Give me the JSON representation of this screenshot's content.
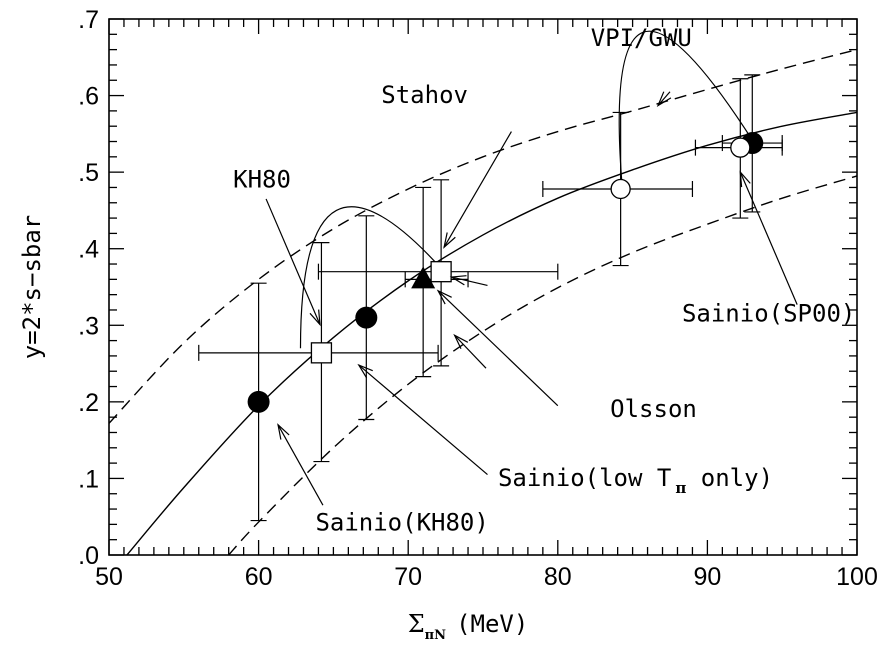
{
  "chart_data": {
    "type": "scatter",
    "title": "",
    "xlabel": {
      "symbol": "Σ",
      "sub": "πN",
      "rest": "(MeV)"
    },
    "ylabel": "y=2*s−sbar",
    "xlim": [
      50,
      100
    ],
    "ylim": [
      0,
      0.7
    ],
    "x_ticks": [
      "50",
      "60",
      "70",
      "80",
      "90",
      "100"
    ],
    "y_ticks": [
      ".0",
      ".1",
      ".2",
      ".3",
      ".4",
      ".5",
      ".6",
      ".7"
    ],
    "series": [
      {
        "marker": "filled-circle",
        "points": [
          {
            "x": 60,
            "y": 0.2,
            "yerr": [
              0.045,
              0.355
            ]
          },
          {
            "x": 67.2,
            "y": 0.31,
            "yerr": [
              0.177,
              0.443
            ]
          },
          {
            "x": 93,
            "y": 0.538,
            "yerr": [
              0.448,
              0.627
            ],
            "xerr": [
              91,
              95
            ]
          }
        ]
      },
      {
        "marker": "open-square",
        "points": [
          {
            "x": 64.2,
            "y": 0.264,
            "yerr": [
              0.122,
              0.408
            ],
            "xerr": [
              56,
              72
            ]
          },
          {
            "x": 72.2,
            "y": 0.37,
            "yerr": [
              0.247,
              0.49
            ],
            "xerr": [
              64,
              80
            ]
          }
        ]
      },
      {
        "marker": "filled-triangle",
        "points": [
          {
            "x": 71,
            "y": 0.36,
            "yerr": [
              0.233,
              0.48
            ],
            "xerr": [
              69.8,
              74
            ]
          }
        ]
      },
      {
        "marker": "open-circle",
        "points": [
          {
            "x": 84.2,
            "y": 0.478,
            "yerr": [
              0.378,
              0.578
            ],
            "xerr": [
              79,
              89
            ]
          },
          {
            "x": 92.2,
            "y": 0.532,
            "yerr": [
              0.44,
              0.622
            ],
            "xerr": [
              89.2,
              95
            ]
          }
        ]
      }
    ],
    "curves": [
      {
        "style": "solid",
        "points": [
          [
            51.2,
            0.0
          ],
          [
            55,
            0.088
          ],
          [
            60,
            0.195
          ],
          [
            65,
            0.284
          ],
          [
            70,
            0.358
          ],
          [
            75,
            0.418
          ],
          [
            80,
            0.466
          ],
          [
            85,
            0.503
          ],
          [
            90,
            0.535
          ],
          [
            95,
            0.56
          ],
          [
            100,
            0.578
          ]
        ]
      },
      {
        "style": "dashed",
        "points": [
          [
            50,
            0.172
          ],
          [
            55,
            0.277
          ],
          [
            60,
            0.36
          ],
          [
            65,
            0.426
          ],
          [
            70,
            0.478
          ],
          [
            75,
            0.52
          ],
          [
            80,
            0.553
          ],
          [
            85,
            0.58
          ],
          [
            90,
            0.608
          ],
          [
            95,
            0.635
          ],
          [
            100,
            0.66
          ]
        ]
      },
      {
        "style": "dashed",
        "points": [
          [
            58,
            0.0
          ],
          [
            60,
            0.043
          ],
          [
            65,
            0.14
          ],
          [
            70,
            0.223
          ],
          [
            75,
            0.292
          ],
          [
            80,
            0.349
          ],
          [
            85,
            0.395
          ],
          [
            90,
            0.432
          ],
          [
            95,
            0.466
          ],
          [
            100,
            0.495
          ]
        ]
      }
    ],
    "annotations": [
      {
        "text": "VPI/GWU",
        "x": 82.2,
        "y": 0.665,
        "arrow": [
          [
            87.5,
            0.605
          ],
          [
            86.7,
            0.587
          ]
        ]
      },
      {
        "text": "Stahov",
        "x": 68.2,
        "y": 0.59,
        "arrow": [
          [
            76.9,
            0.553
          ],
          [
            72.4,
            0.402
          ]
        ]
      },
      {
        "text": "KH80",
        "x": 58.3,
        "y": 0.48,
        "arrow": [
          [
            60.5,
            0.465
          ],
          [
            64.1,
            0.301
          ]
        ]
      },
      {
        "text": "Sainio(SP00)",
        "x": 88.3,
        "y": 0.305,
        "arrow": [
          [
            96,
            0.327
          ],
          [
            92.2,
            0.5
          ]
        ]
      },
      {
        "text": "Olsson",
        "x": 83.5,
        "y": 0.18,
        "arrow": [
          [
            80,
            0.195
          ],
          [
            72,
            0.345
          ]
        ]
      },
      {
        "text": "Sainio(low T",
        "sub": "π",
        "tail": " only)",
        "x": 76,
        "y": 0.09,
        "arrow": [
          [
            75.3,
            0.105
          ],
          [
            66.7,
            0.248
          ]
        ]
      },
      {
        "text": "Sainio(KH80)",
        "x": 63.8,
        "y": 0.032,
        "arrow": [
          [
            64.3,
            0.065
          ],
          [
            61.3,
            0.17
          ]
        ]
      }
    ],
    "loops": [
      {
        "from": [
          84.3,
          0.482
        ],
        "control": [
          82.8,
          0.85
        ],
        "to": [
          92.8,
          0.548
        ]
      },
      {
        "from": [
          62.8,
          0.27
        ],
        "control": [
          62.8,
          0.58
        ],
        "to": [
          72.4,
          0.37
        ]
      }
    ],
    "extra_arrows": [
      [
        [
          75.2,
          0.244
        ],
        [
          73.1,
          0.287
        ]
      ],
      [
        [
          75.3,
          0.352
        ],
        [
          72.9,
          0.363
        ]
      ]
    ]
  }
}
